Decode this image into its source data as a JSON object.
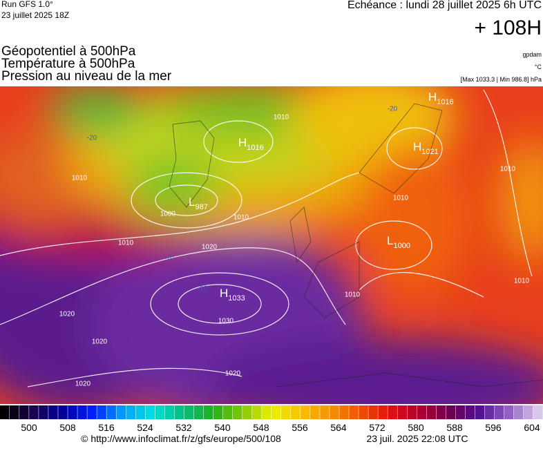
{
  "header": {
    "run": "Run GFS 1.0°",
    "run_date": "23 juillet 2025 18Z",
    "valid": "Echéance : lundi 28 juillet 2025 6h UTC",
    "lead": "+ 108H"
  },
  "fields": [
    {
      "name": "Géopotentiel à 500hPa",
      "unit": "gpdam"
    },
    {
      "name": "Température à 500hPa",
      "unit": "°C"
    },
    {
      "name": "Pression au niveau de la mer",
      "unit": "[Max 1033.3 | Min 986.8] hPa"
    }
  ],
  "map": {
    "centers": [
      {
        "kind": "H",
        "value": "1033"
      },
      {
        "kind": "L",
        "value": "987"
      },
      {
        "kind": "H",
        "value": "1021"
      },
      {
        "kind": "L",
        "value": "1000"
      },
      {
        "kind": "H",
        "value": "1016"
      },
      {
        "kind": "H",
        "value": "1016"
      }
    ],
    "isobar_labels": [
      "1010",
      "1000",
      "1010",
      "1020",
      "1010",
      "1020",
      "1020",
      "1020",
      "1030",
      "1020",
      "1010",
      "1010",
      "1010",
      "1010",
      "1010"
    ],
    "temperature_labels": [
      "-20",
      "-20",
      "-10",
      "-10"
    ]
  },
  "colorbar": {
    "ticks": [
      500,
      508,
      516,
      524,
      532,
      540,
      548,
      556,
      564,
      572,
      580,
      588,
      596,
      604
    ]
  },
  "footer": {
    "source": "© http://www.infoclimat.fr/z/gfs/europe/500/108",
    "generated": "23 juil. 2025 22:08 UTC"
  }
}
